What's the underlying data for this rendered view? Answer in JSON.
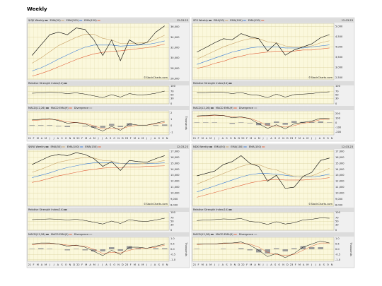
{
  "page_title": "Weekly",
  "watermark": "©StockCharts.com",
  "month_labels": [
    "21",
    "F",
    "M",
    "A",
    "M",
    "J",
    "J",
    "A",
    "S",
    "O",
    "N",
    "D",
    "22",
    "F",
    "M",
    "A",
    "M",
    "J",
    "J",
    "A",
    "S",
    "O",
    "N",
    "D",
    "23",
    "F",
    "M",
    "A",
    "M",
    "J",
    "J",
    "A",
    "S",
    "O",
    "N"
  ],
  "chart_data": [
    {
      "type": "stock",
      "title": "$.DJI Weekly",
      "date": "12-03-23",
      "ylim": [
        25800,
        36700
      ],
      "yticks": [
        {
          "value": 26000,
          "label": "26,000"
        },
        {
          "value": 28000,
          "label": "28,000"
        },
        {
          "value": 30000,
          "label": "30,000"
        },
        {
          "value": 32000,
          "label": "32,000"
        },
        {
          "value": 34000,
          "label": "34,000"
        },
        {
          "value": 36000,
          "label": "36,000"
        }
      ],
      "price": {
        "color": "#000000",
        "values": [
          30500,
          32500,
          34500,
          35000,
          34500,
          35800,
          35500,
          33500,
          30500,
          33500,
          29500,
          33500,
          32500,
          33000,
          35000,
          36200
        ]
      },
      "series": [
        {
          "name": "EMA(50)",
          "color": "#c9a46a",
          "values": [
            29000,
            30000,
            31200,
            32400,
            33200,
            34000,
            34600,
            34600,
            33800,
            33500,
            32800,
            32800,
            32900,
            33000,
            33600,
            34400
          ]
        },
        {
          "name": "EMA(100)",
          "color": "#3b7dd8",
          "values": [
            27500,
            28100,
            28900,
            29800,
            30600,
            31400,
            32100,
            32500,
            32500,
            32500,
            32300,
            32400,
            32500,
            32600,
            32900,
            33300
          ]
        },
        {
          "name": "EMA(150)",
          "color": "#e0603a",
          "values": [
            26500,
            27000,
            27600,
            28300,
            29000,
            29700,
            30300,
            30800,
            31100,
            31300,
            31400,
            31600,
            31800,
            32000,
            32300,
            32700
          ]
        }
      ],
      "rsi": {
        "label": "Relative Strength Index(14)",
        "color": "#000000",
        "ylim": [
          0,
          100
        ],
        "yticks": [
          0,
          30,
          50,
          70,
          100
        ],
        "values": [
          60,
          62,
          65,
          63,
          58,
          62,
          55,
          45,
          35,
          52,
          38,
          58,
          50,
          52,
          60,
          72
        ]
      },
      "macd": {
        "axis_label": "Thousands",
        "ylim": [
          -1.4,
          2.3
        ],
        "yticks": [
          -1,
          0,
          1,
          2
        ],
        "series": [
          {
            "name": "MACD(12,26)",
            "color": "#000000",
            "values": [
              0.9,
              1.0,
              1.1,
              0.8,
              0.4,
              0.5,
              0.3,
              -0.3,
              -0.8,
              -0.1,
              -0.7,
              0.3,
              0.1,
              0.1,
              0.4,
              0.7
            ]
          },
          {
            "name": "MACD EMA(9)",
            "color": "#e0603a",
            "values": [
              0.8,
              0.9,
              1.0,
              0.9,
              0.6,
              0.5,
              0.4,
              0.0,
              -0.5,
              -0.4,
              -0.5,
              -0.1,
              0.1,
              0.1,
              0.3,
              0.5
            ]
          },
          {
            "name": "Divergence",
            "color": "#9a9a9a",
            "values": [
              0.1,
              0.1,
              0.1,
              -0.1,
              -0.2,
              0,
              -0.1,
              -0.3,
              -0.3,
              0.3,
              -0.2,
              0.4,
              0,
              0,
              0.1,
              0.2
            ]
          }
        ]
      }
    },
    {
      "type": "stock",
      "title": "SPX Weekly",
      "date": "12-03-23",
      "ylim": [
        2400,
        5150
      ],
      "yticks": [
        {
          "value": 2500,
          "label": "2,500"
        },
        {
          "value": 3000,
          "label": "3,000"
        },
        {
          "value": 3500,
          "label": "3,500"
        },
        {
          "value": 4000,
          "label": "4,000"
        },
        {
          "value": 4500,
          "label": "4,500"
        },
        {
          "value": 5000,
          "label": "5,000"
        }
      ],
      "price": {
        "color": "#000000",
        "values": [
          3750,
          3970,
          4200,
          4400,
          4350,
          4650,
          4500,
          4400,
          3800,
          4200,
          3600,
          3850,
          4000,
          4150,
          4450,
          4600
        ]
      },
      "series": [
        {
          "name": "EMA(50)",
          "color": "#c9a46a",
          "values": [
            3400,
            3600,
            3800,
            4000,
            4150,
            4300,
            4400,
            4400,
            4250,
            4200,
            4050,
            4000,
            4000,
            4050,
            4200,
            4300
          ]
        },
        {
          "name": "EMA(100)",
          "color": "#3b7dd8",
          "values": [
            3150,
            3300,
            3450,
            3600,
            3750,
            3850,
            3950,
            4000,
            4000,
            4000,
            3950,
            3950,
            3950,
            4000,
            4050,
            4100
          ]
        },
        {
          "name": "EMA(150)",
          "color": "#e0603a",
          "values": [
            2950,
            3050,
            3200,
            3300,
            3450,
            3550,
            3650,
            3700,
            3750,
            3800,
            3800,
            3800,
            3850,
            3850,
            3900,
            3950
          ]
        }
      ],
      "rsi": {
        "label": "Relative Strength Index(14)",
        "color": "#000000",
        "ylim": [
          0,
          100
        ],
        "yticks": [
          0,
          30,
          50,
          70,
          100
        ],
        "values": [
          62,
          63,
          66,
          65,
          58,
          64,
          52,
          48,
          35,
          55,
          38,
          52,
          55,
          58,
          65,
          68
        ]
      },
      "macd": {
        "ylim": [
          -260,
          260
        ],
        "yticks": [
          -200,
          -100,
          0,
          100,
          200
        ],
        "series": [
          {
            "name": "MACD(12,26)",
            "color": "#000000",
            "values": [
              150,
              160,
              170,
              160,
              110,
              130,
              90,
              -20,
              -120,
              -40,
              -130,
              -20,
              10,
              40,
              100,
              90
            ]
          },
          {
            "name": "MACD EMA(9)",
            "color": "#e0603a",
            "values": [
              140,
              150,
              160,
              160,
              130,
              120,
              100,
              30,
              -60,
              -70,
              -90,
              -60,
              -10,
              20,
              70,
              80
            ]
          },
          {
            "name": "Divergence",
            "color": "#9a9a9a",
            "values": [
              10,
              10,
              10,
              0,
              -20,
              10,
              -10,
              -50,
              -60,
              30,
              -40,
              40,
              20,
              20,
              30,
              10
            ]
          }
        ]
      }
    },
    {
      "type": "stock",
      "title": "$NYA Weekly",
      "date": "12-03-23",
      "ylim": [
        7800,
        17300
      ],
      "yticks": [
        {
          "value": 8000,
          "label": "8,000"
        },
        {
          "value": 9000,
          "label": "9,000"
        },
        {
          "value": 10000,
          "label": "10,000"
        },
        {
          "value": 11000,
          "label": "11,000"
        },
        {
          "value": 12000,
          "label": "12,000"
        },
        {
          "value": 13000,
          "label": "13,000"
        },
        {
          "value": 14000,
          "label": "14,000"
        },
        {
          "value": 15000,
          "label": "15,000"
        },
        {
          "value": 16000,
          "label": "16,000"
        },
        {
          "value": 17000,
          "label": "17,000"
        }
      ],
      "price": {
        "color": "#000000",
        "values": [
          14800,
          15500,
          16200,
          16500,
          16300,
          16800,
          16500,
          15800,
          14500,
          15300,
          13800,
          15500,
          15300,
          15200,
          15800,
          16300
        ]
      },
      "series": [
        {
          "name": "EMA(50)",
          "color": "#c9a46a",
          "values": [
            13500,
            14000,
            14600,
            15200,
            15500,
            15800,
            16000,
            15900,
            15500,
            15400,
            15000,
            14900,
            14900,
            15000,
            15200,
            15500
          ]
        },
        {
          "name": "EMA(100)",
          "color": "#3b7dd8",
          "values": [
            12600,
            13000,
            13400,
            13900,
            14300,
            14600,
            14900,
            15100,
            15100,
            15100,
            15000,
            15000,
            14950,
            14950,
            15000,
            15100
          ]
        },
        {
          "name": "EMA(150)",
          "color": "#e0603a",
          "values": [
            11800,
            12100,
            12500,
            12900,
            13200,
            13500,
            13800,
            14000,
            14200,
            14300,
            14300,
            14400,
            14400,
            14500,
            14550,
            14600
          ]
        }
      ],
      "rsi": {
        "label": "Relative Strength Index(14)",
        "color": "#000000",
        "ylim": [
          0,
          100
        ],
        "yticks": [
          0,
          30,
          50,
          70,
          100
        ],
        "values": [
          60,
          62,
          64,
          62,
          58,
          62,
          55,
          45,
          35,
          52,
          38,
          60,
          52,
          50,
          58,
          68
        ]
      },
      "macd": {
        "axis_label": "Thousands",
        "ylim": [
          -1.15,
          1.15
        ],
        "yticks": [
          {
            "value": -1,
            "label": "-1.0"
          },
          {
            "value": -0.5,
            "label": "-0.5"
          },
          {
            "value": 0,
            "label": "0.0"
          },
          {
            "value": 0.5,
            "label": "0.5"
          },
          {
            "value": 1,
            "label": "1.0"
          }
        ],
        "series": [
          {
            "name": "MACD(12,26)",
            "color": "#000000",
            "values": [
              0.5,
              0.6,
              0.6,
              0.5,
              0.3,
              0.4,
              0.2,
              -0.2,
              -0.6,
              -0.1,
              -0.5,
              0.2,
              0.2,
              0.1,
              0.3,
              0.5
            ]
          },
          {
            "name": "MACD EMA(9)",
            "color": "#e0603a",
            "values": [
              0.45,
              0.5,
              0.55,
              0.5,
              0.4,
              0.35,
              0.3,
              0.0,
              -0.4,
              -0.3,
              -0.35,
              -0.1,
              0.1,
              0.1,
              0.2,
              0.4
            ]
          },
          {
            "name": "Divergence",
            "color": "#9a9a9a",
            "values": [
              0.05,
              0.1,
              0.05,
              0,
              -0.1,
              0.05,
              -0.1,
              -0.2,
              -0.2,
              0.2,
              -0.15,
              0.3,
              0.1,
              0,
              0.1,
              0.1
            ]
          }
        ]
      }
    },
    {
      "type": "stock",
      "title": "NDX Weekly",
      "date": "12-03-23",
      "ylim": [
        7800,
        17300
      ],
      "yticks": [
        {
          "value": 8000,
          "label": "8,000"
        },
        {
          "value": 9000,
          "label": "9,000"
        },
        {
          "value": 10000,
          "label": "10,000"
        },
        {
          "value": 11000,
          "label": "11,000"
        },
        {
          "value": 12000,
          "label": "12,000"
        },
        {
          "value": 13000,
          "label": "13,000"
        },
        {
          "value": 14000,
          "label": "14,000"
        },
        {
          "value": 15000,
          "label": "15,000"
        },
        {
          "value": 16000,
          "label": "16,000"
        },
        {
          "value": 17000,
          "label": "17,000"
        }
      ],
      "price": {
        "color": "#000000",
        "values": [
          12900,
          13300,
          13700,
          14800,
          15300,
          16300,
          15000,
          14500,
          12000,
          13000,
          10800,
          11000,
          12800,
          13500,
          15500,
          15900
        ]
      },
      "series": [
        {
          "name": "EMA(50)",
          "color": "#c9a46a",
          "values": [
            11500,
            12100,
            12700,
            13300,
            13900,
            14500,
            14900,
            14800,
            14200,
            13900,
            13300,
            12800,
            12700,
            12900,
            13500,
            14200
          ]
        },
        {
          "name": "EMA(100)",
          "color": "#3b7dd8",
          "values": [
            10200,
            10700,
            11200,
            11700,
            12200,
            12700,
            13100,
            13300,
            13300,
            13200,
            13000,
            12800,
            12700,
            12700,
            12900,
            13200
          ]
        },
        {
          "name": "EMA(150)",
          "color": "#e0603a",
          "values": [
            9300,
            9700,
            10100,
            10500,
            10900,
            11300,
            11700,
            12000,
            12200,
            12300,
            12200,
            12200,
            12200,
            12300,
            12400,
            12600
          ]
        }
      ],
      "rsi": {
        "label": "Relative Strength Index(14)",
        "color": "#000000",
        "ylim": [
          0,
          100
        ],
        "yticks": [
          0,
          30,
          50,
          70,
          100
        ],
        "values": [
          55,
          58,
          60,
          64,
          62,
          66,
          50,
          45,
          33,
          48,
          35,
          42,
          58,
          62,
          70,
          68
        ]
      },
      "macd": {
        "axis_label": "Thousands",
        "ylim": [
          -1.15,
          1.15
        ],
        "yticks": [
          {
            "value": -1,
            "label": "-1.0"
          },
          {
            "value": -0.5,
            "label": "-0.5"
          },
          {
            "value": 0,
            "label": "0.0"
          },
          {
            "value": 0.5,
            "label": "0.5"
          },
          {
            "value": 1,
            "label": "1.0"
          }
        ],
        "series": [
          {
            "name": "MACD(12,26)",
            "color": "#000000",
            "values": [
              0.5,
              0.5,
              0.5,
              0.6,
              0.6,
              0.7,
              0.4,
              -0.1,
              -0.7,
              -0.4,
              -0.8,
              -0.4,
              0.2,
              0.5,
              0.8,
              0.6
            ]
          },
          {
            "name": "MACD EMA(9)",
            "color": "#e0603a",
            "values": [
              0.45,
              0.5,
              0.5,
              0.55,
              0.6,
              0.6,
              0.5,
              0.2,
              -0.3,
              -0.5,
              -0.6,
              -0.5,
              -0.1,
              0.3,
              0.6,
              0.6
            ]
          },
          {
            "name": "Divergence",
            "color": "#9a9a9a",
            "values": [
              0.05,
              0,
              0,
              0.05,
              0,
              0.1,
              -0.1,
              -0.3,
              -0.4,
              0.1,
              -0.2,
              0.1,
              0.3,
              0.2,
              0.2,
              0
            ]
          }
        ]
      }
    }
  ]
}
